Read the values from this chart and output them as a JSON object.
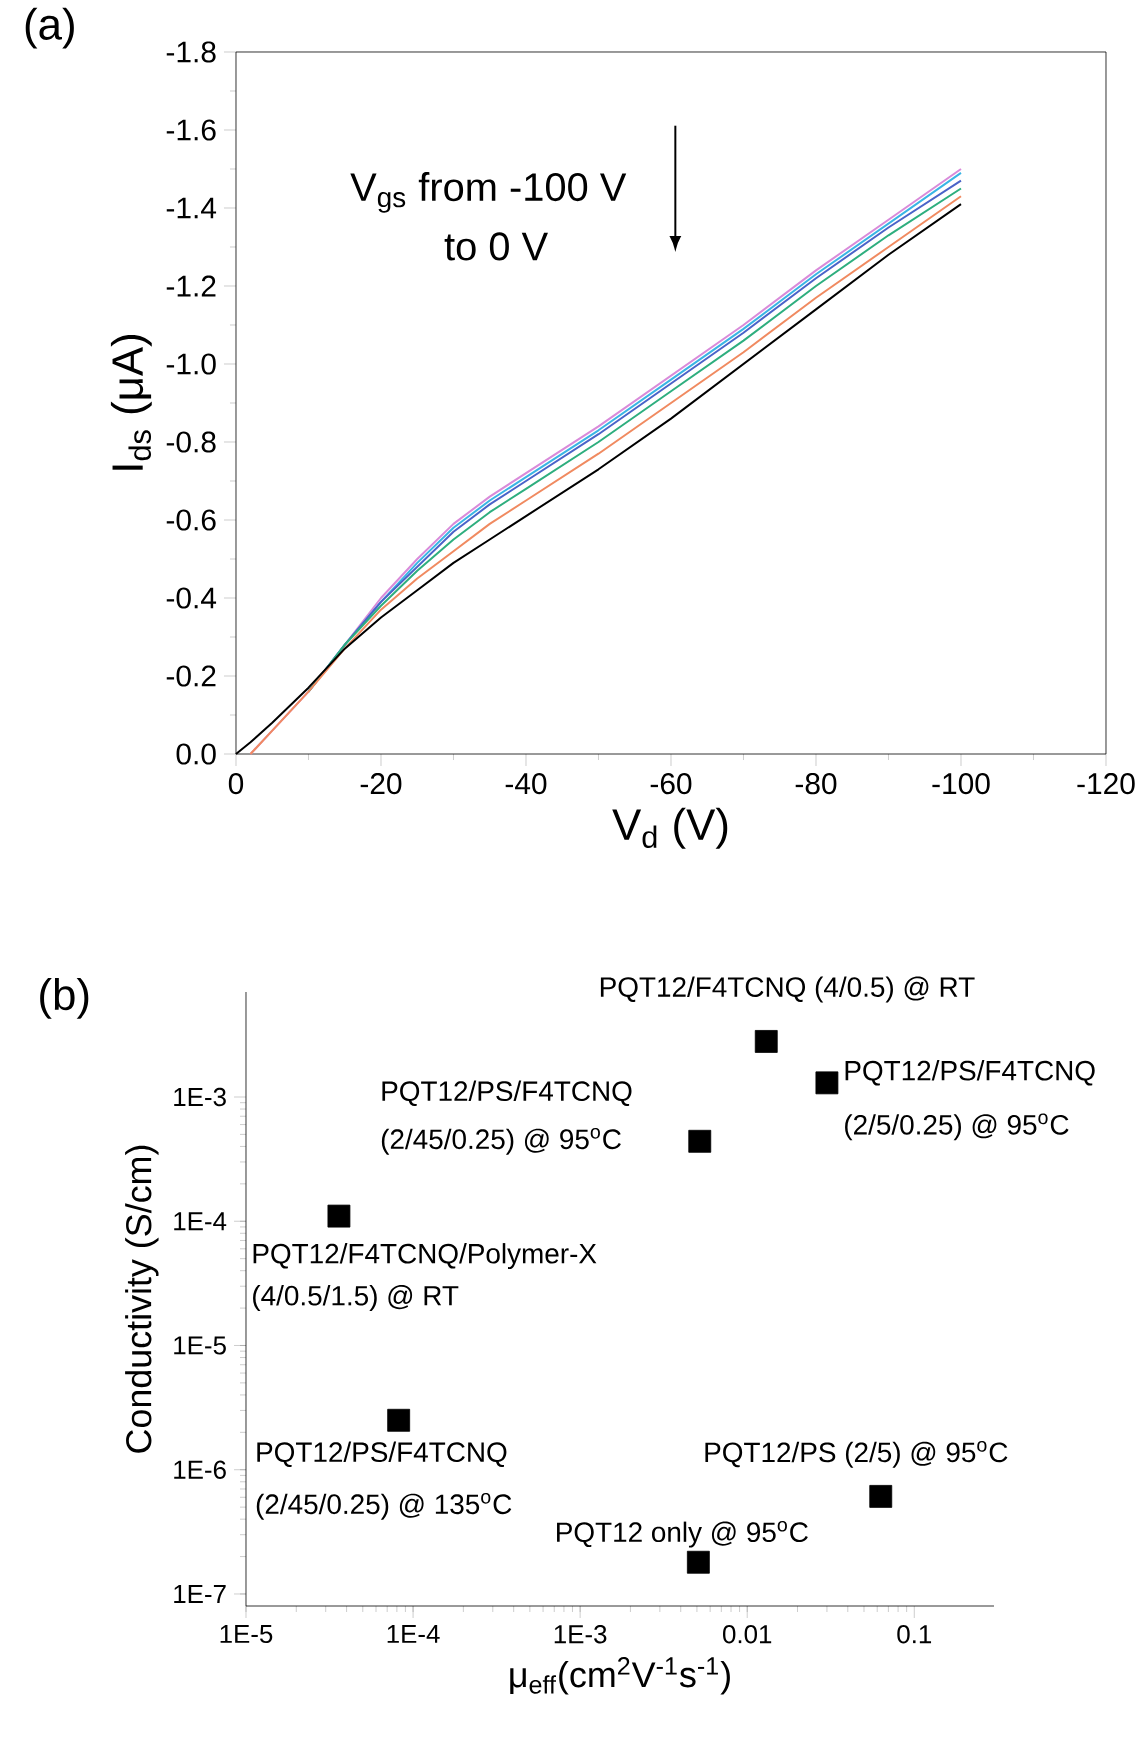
{
  "chart_data": [
    {
      "type": "line",
      "title": "(a)",
      "xlabel": "V$_{d}$ (V)",
      "ylabel": "I$_{ds}$ (μA)",
      "xlim": [
        0,
        -120
      ],
      "ylim": [
        0,
        -1.8
      ],
      "xticks": [
        0,
        -20,
        -40,
        -60,
        -80,
        -100,
        -120
      ],
      "yticks": [
        {
          "value": 0,
          "label": "0.0"
        },
        {
          "value": -0.2,
          "label": "-0.2"
        },
        {
          "value": -0.4,
          "label": "-0.4"
        },
        {
          "value": -0.6,
          "label": "-0.6"
        },
        {
          "value": -0.8,
          "label": "-0.8"
        },
        {
          "value": -1.0,
          "label": "-1.0"
        },
        {
          "value": -1.2,
          "label": "-1.2"
        },
        {
          "value": -1.4,
          "label": "-1.4"
        },
        {
          "value": -1.6,
          "label": "-1.6"
        },
        {
          "value": -1.8,
          "label": "-1.8"
        }
      ],
      "annotations": [
        "V$_{gs}$ from -100 V",
        "to 0 V"
      ],
      "series": [
        {
          "color": "#d98ad9",
          "x": [
            -2,
            -5,
            -10,
            -15,
            -20,
            -25,
            -30,
            -35,
            -40,
            -50,
            -60,
            -70,
            -80,
            -90,
            -100
          ],
          "values": [
            0,
            -0.06,
            -0.16,
            -0.28,
            -0.4,
            -0.5,
            -0.59,
            -0.66,
            -0.72,
            -0.84,
            -0.97,
            -1.1,
            -1.24,
            -1.37,
            -1.5
          ]
        },
        {
          "color": "#39b5e5",
          "x": [
            -10,
            -15,
            -20,
            -25,
            -30,
            -35,
            -40,
            -50,
            -60,
            -70,
            -80,
            -90,
            -100
          ],
          "values": [
            -0.16,
            -0.28,
            -0.39,
            -0.49,
            -0.58,
            -0.65,
            -0.71,
            -0.83,
            -0.96,
            -1.09,
            -1.23,
            -1.36,
            -1.49
          ]
        },
        {
          "color": "#4a63c8",
          "x": [
            -10,
            -15,
            -20,
            -25,
            -30,
            -35,
            -40,
            -50,
            -60,
            -70,
            -80,
            -90,
            -100
          ],
          "values": [
            -0.16,
            -0.28,
            -0.39,
            -0.48,
            -0.57,
            -0.64,
            -0.7,
            -0.82,
            -0.95,
            -1.08,
            -1.22,
            -1.35,
            -1.47
          ]
        },
        {
          "color": "#2eae7e",
          "x": [
            -10,
            -15,
            -20,
            -25,
            -30,
            -35,
            -40,
            -50,
            -60,
            -70,
            -80,
            -90,
            -100
          ],
          "values": [
            -0.16,
            -0.28,
            -0.38,
            -0.47,
            -0.55,
            -0.62,
            -0.68,
            -0.8,
            -0.93,
            -1.06,
            -1.2,
            -1.33,
            -1.45
          ]
        },
        {
          "color": "#f08a60",
          "x": [
            -2,
            -5,
            -10,
            -15,
            -20,
            -25,
            -30,
            -35,
            -40,
            -50,
            -60,
            -70,
            -80,
            -90,
            -100
          ],
          "values": [
            0,
            -0.06,
            -0.16,
            -0.27,
            -0.37,
            -0.45,
            -0.52,
            -0.59,
            -0.65,
            -0.77,
            -0.9,
            -1.03,
            -1.17,
            -1.3,
            -1.43
          ]
        },
        {
          "color": "#000000",
          "x": [
            0,
            -2,
            -5,
            -10,
            -15,
            -20,
            -25,
            -30,
            -35,
            -40,
            -50,
            -60,
            -70,
            -80,
            -90,
            -100
          ],
          "values": [
            0,
            -0.03,
            -0.08,
            -0.17,
            -0.27,
            -0.35,
            -0.42,
            -0.49,
            -0.55,
            -0.61,
            -0.73,
            -0.86,
            -1.0,
            -1.14,
            -1.28,
            -1.41
          ]
        }
      ]
    },
    {
      "type": "scatter",
      "title": "(b)",
      "xlabel": "μ$_{eff}$(cm$^{2}$V$^{-1}$s$^{-1}$)",
      "ylabel": "Conductivity (S/cm)",
      "log": "xy",
      "marker": "square",
      "xlim": [
        1e-05,
        0.3
      ],
      "ylim": [
        8e-08,
        0.007
      ],
      "xticks": [
        {
          "value": 1e-05,
          "label": "1E-5"
        },
        {
          "value": 0.0001,
          "label": "1E-4"
        },
        {
          "value": 0.001,
          "label": "1E-3"
        },
        0.01,
        0.1
      ],
      "yticks": [
        {
          "value": 1e-07,
          "label": "1E-7"
        },
        {
          "value": 1e-06,
          "label": "1E-6"
        },
        {
          "value": 1e-05,
          "label": "1E-5"
        },
        {
          "value": 0.0001,
          "label": "1E-4"
        },
        {
          "value": 0.001,
          "label": "1E-3"
        }
      ],
      "series": [
        {
          "color": "#000000",
          "x": [
            3.6e-05,
            8.2e-05,
            0.0052,
            0.013,
            0.03,
            0.0051,
            0.063
          ],
          "values": [
            0.00011,
            2.5e-06,
            0.00044,
            0.0028,
            0.0013,
            1.8e-07,
            6.1e-07
          ]
        }
      ],
      "annotations": [
        {
          "text": "PQT12/F4TCNQ/Polymer-X",
          "x": 3.6e-05,
          "y": 0.00011
        },
        {
          "text": "(4/0.5/1.5) @ RT",
          "x": 3.6e-05,
          "y": 0.00011
        },
        {
          "text": "PQT12/PS/F4TCNQ",
          "x": 8.2e-05,
          "y": 2.5e-06
        },
        {
          "text": "(2/45/0.25) @ 135$^{o}$C",
          "x": 8.2e-05,
          "y": 2.5e-06
        },
        {
          "text": "PQT12/PS/F4TCNQ",
          "x": 0.0052,
          "y": 0.00044
        },
        {
          "text": "(2/45/0.25) @ 95$^{o}$C",
          "x": 0.0052,
          "y": 0.00044
        },
        {
          "text": "PQT12/F4TCNQ (4/0.5) @ RT",
          "x": 0.013,
          "y": 0.0028
        },
        {
          "text": "PQT12/PS/F4TCNQ",
          "x": 0.03,
          "y": 0.0013
        },
        {
          "text": "(2/5/0.25) @ 95$^{o}$C",
          "x": 0.03,
          "y": 0.0013
        },
        {
          "text": "PQT12 only @ 95$^{o}$C",
          "x": 0.0051,
          "y": 1.8e-07
        },
        {
          "text": "PQT12/PS (2/5) @ 95$^{o}$C",
          "x": 0.063,
          "y": 6.1e-07
        }
      ]
    }
  ]
}
